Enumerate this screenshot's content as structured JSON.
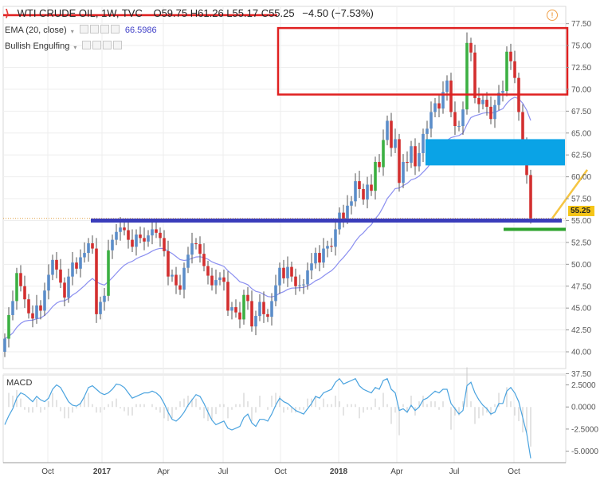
{
  "header": {
    "symbol": "WTI CRUDE OIL, 1W, TVC",
    "open_label": "O59.75",
    "high_label": "H61.26",
    "low_label": "L55.17",
    "close_label": "C55.25",
    "change_label": "−4.50 (−7.53%)",
    "ema_label": "EMA (20, close)",
    "ema_value": "66.5986",
    "pattern_label": "Bullish Engulfing",
    "macd_label": "MACD",
    "last_price_tag": "55.25"
  },
  "colors": {
    "up": "#3cb043",
    "down": "#d32f2f",
    "neutral_up": "#5b8dc9",
    "ema": "#8b8ff0",
    "macd": "#4aa3df",
    "support_line": "#3a3dbb",
    "resistance_box": "#e02020",
    "zone_box": "#0aa3e6",
    "green_line": "#2ea32e",
    "trend_line": "#f5c542",
    "price_tag": "#f5c518"
  },
  "chart_data": [
    {
      "type": "candlestick",
      "title": "WTI CRUDE OIL, 1W, TVC",
      "x_tick_labels": [
        "Oct",
        "2017",
        "Apr",
        "Jul",
        "Oct",
        "2018",
        "Apr",
        "Jul",
        "Oct"
      ],
      "y_tick_labels": [
        "77.50",
        "75.00",
        "72.50",
        "70.00",
        "67.50",
        "65.00",
        "62.50",
        "60.00",
        "57.50",
        "55.00",
        "52.50",
        "50.00",
        "47.50",
        "45.00",
        "42.50",
        "40.00",
        "37.50"
      ],
      "ylim": [
        37.5,
        78
      ],
      "close_series": [
        41.5,
        44.2,
        45.8,
        49.0,
        47.5,
        46.0,
        44.4,
        43.8,
        45.3,
        44.7,
        47.0,
        48.8,
        50.5,
        49.4,
        47.9,
        46.2,
        48.6,
        50.2,
        49.5,
        50.8,
        51.3,
        52.4,
        51.8,
        44.3,
        45.7,
        46.4,
        51.6,
        52.8,
        53.7,
        54.2,
        53.9,
        52.8,
        52.0,
        53.4,
        53.0,
        52.6,
        53.3,
        54.0,
        53.6,
        53.0,
        51.5,
        48.6,
        48.8,
        47.6,
        47.1,
        49.6,
        51.1,
        52.4,
        52.3,
        51.2,
        49.8,
        48.7,
        47.6,
        48.2,
        48.5,
        48.0,
        44.7,
        45.1,
        44.5,
        43.7,
        46.5,
        45.8,
        42.9,
        44.1,
        45.7,
        44.3,
        44.0,
        45.8,
        47.6,
        49.6,
        48.4,
        49.7,
        48.6,
        47.5,
        47.6,
        47.7,
        49.3,
        50.1,
        51.3,
        50.2,
        51.8,
        52.1,
        52.0,
        54.0,
        55.9,
        55.2,
        56.7,
        57.2,
        59.5,
        58.6,
        57.4,
        59.1,
        58.4,
        61.7,
        61.1,
        64.2,
        66.4,
        63.3,
        64.3,
        59.3,
        61.7,
        61.6,
        63.5,
        61.2,
        62.7,
        64.9,
        65.5,
        67.4,
        68.4,
        67.8,
        69.7,
        71.0,
        67.4,
        65.8,
        65.8,
        67.7,
        75.3,
        74.2,
        69.0,
        68.3,
        68.8,
        68.0,
        66.6,
        68.2,
        69.6,
        69.8,
        74.3,
        73.2,
        71.3,
        67.4,
        63.3,
        60.2,
        55.25
      ],
      "support_level": 55.0,
      "resistance_zone": [
        69.4,
        77.0
      ],
      "highlight_zone": [
        61.3,
        64.3
      ],
      "last_price": 55.25,
      "ema_period": 20,
      "ema_last": 66.5986,
      "grid": true
    },
    {
      "type": "line",
      "title": "MACD",
      "y_tick_labels": [
        "2.5000",
        "0.0000",
        "-2.5000",
        "-5.0000"
      ],
      "ylim": [
        -5.8,
        3.2
      ],
      "macd_series": [
        -2.0,
        -1.0,
        -0.2,
        1.0,
        1.6,
        1.4,
        1.0,
        0.6,
        1.2,
        0.8,
        0.6,
        1.0,
        2.0,
        2.5,
        2.2,
        1.4,
        0.6,
        0.2,
        0.1,
        0.4,
        1.2,
        2.2,
        2.4,
        2.0,
        1.6,
        1.4,
        1.6,
        2.0,
        2.6,
        2.5,
        2.2,
        1.6,
        1.0,
        1.2,
        1.4,
        1.6,
        1.6,
        1.8,
        1.6,
        1.2,
        0.4,
        -0.6,
        -1.4,
        -1.6,
        -1.2,
        -0.6,
        0.2,
        0.8,
        1.4,
        1.2,
        0.4,
        -0.6,
        -1.5,
        -2.0,
        -1.8,
        -1.6,
        -2.4,
        -2.6,
        -2.4,
        -2.2,
        -1.2,
        -0.8,
        -1.8,
        -2.2,
        -1.4,
        -1.4,
        -1.6,
        -0.8,
        0.2,
        1.0,
        0.6,
        0.4,
        0.0,
        -0.4,
        -0.6,
        -0.8,
        -0.2,
        0.4,
        1.2,
        1.0,
        1.6,
        1.8,
        2.0,
        2.8,
        3.2,
        2.6,
        2.8,
        3.0,
        3.2,
        2.4,
        2.0,
        1.8,
        1.6,
        2.2,
        2.0,
        3.0,
        3.2,
        2.0,
        1.6,
        -0.4,
        -0.2,
        -0.6,
        0.2,
        -0.4,
        0.0,
        0.8,
        1.0,
        1.4,
        1.8,
        1.6,
        2.0,
        2.0,
        0.4,
        -0.2,
        -0.8,
        -0.4,
        2.4,
        2.8,
        1.6,
        0.8,
        0.2,
        -0.2,
        -0.8,
        -0.6,
        0.4,
        0.4,
        1.8,
        2.2,
        1.6,
        0.6,
        -1.2,
        -3.0,
        -5.8
      ],
      "grid": true
    }
  ]
}
